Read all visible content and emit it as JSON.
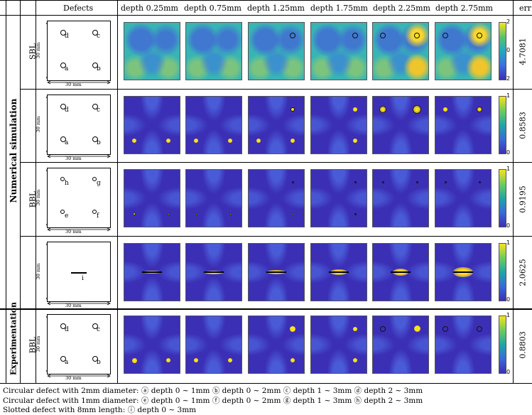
{
  "header": {
    "defects": "Defects",
    "depths": [
      "depth 0.25mm",
      "depth 0.75mm",
      "depth 1.25mm",
      "depth 1.75mm",
      "depth 2.25mm",
      "depth 2.75mm"
    ],
    "err": "err"
  },
  "groups": {
    "numerical": "Numerical simulation",
    "experimentation": "Experimentation"
  },
  "methods": {
    "sbl": "SBL",
    "bbl": "BBL"
  },
  "dimension": {
    "width": "30 mm",
    "height": "30 mm"
  },
  "rows": [
    {
      "id": "sbl",
      "err": "4.7081",
      "labels": [
        "d",
        "c",
        "a",
        "b"
      ],
      "colorbar": [
        "2",
        "0",
        "2"
      ]
    },
    {
      "id": "bbl1",
      "err": "0.8583",
      "labels": [
        "d",
        "c",
        "a",
        "b"
      ],
      "colorbar": [
        "1",
        "0"
      ]
    },
    {
      "id": "bbl2",
      "err": "0.9195",
      "labels": [
        "h",
        "g",
        "e",
        "f"
      ],
      "colorbar": [
        "1",
        "0"
      ]
    },
    {
      "id": "bbl3",
      "err": "2.0625",
      "labels": [
        "i"
      ],
      "colorbar": [
        "1",
        "0"
      ]
    },
    {
      "id": "exp",
      "err": "0.8803",
      "labels": [
        "d",
        "c",
        "a",
        "b"
      ],
      "colorbar": [
        "1",
        "0"
      ]
    }
  ],
  "legend": [
    "Circular defect with 2mm diameter: ⓐ depth 0 ∼ 1mm   ⓑ depth 0 ∼ 2mm   ⓒ depth 1 ∼ 3mm   ⓓ depth 2 ∼ 3mm",
    "Circular defect with 1mm diameter: ⓔ depth 0 ∼ 1mm   ⓕ depth 0 ∼ 2mm   ⓖ depth 1 ∼ 3mm   ⓗ depth 2 ∼ 3mm",
    "Slotted defect with 8mm length: ⓘ depth 0 ∼ 3mm"
  ],
  "colors": {
    "blue": "#3b2fb5",
    "yellow": "#f9e21b",
    "teal": "#22b8a8",
    "frame": "#000000"
  }
}
